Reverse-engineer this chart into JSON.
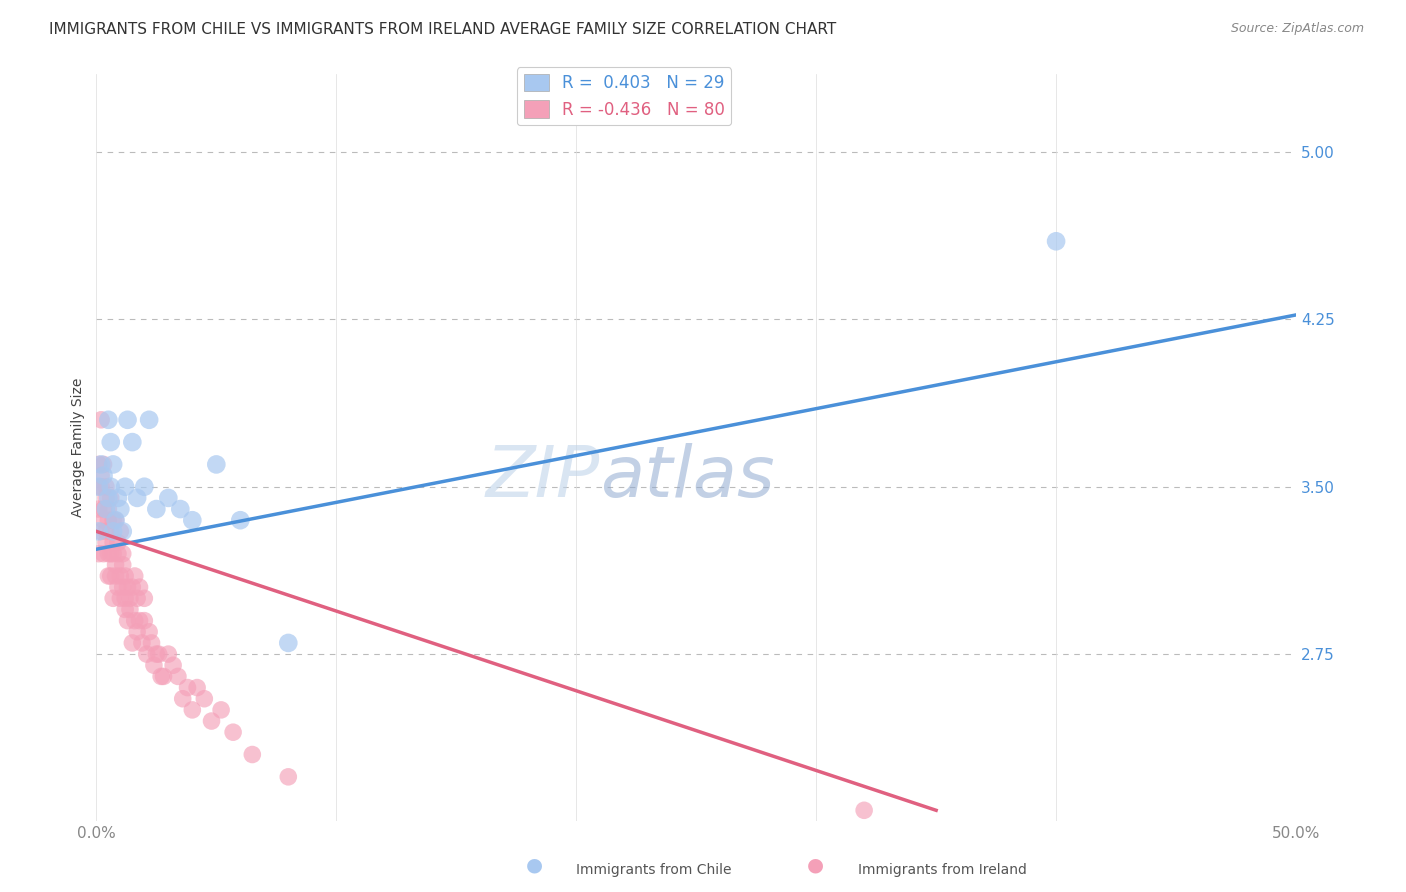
{
  "title": "IMMIGRANTS FROM CHILE VS IMMIGRANTS FROM IRELAND AVERAGE FAMILY SIZE CORRELATION CHART",
  "source": "Source: ZipAtlas.com",
  "ylabel": "Average Family Size",
  "watermark": "ZIPatlas",
  "chile_label": "Immigrants from Chile",
  "ireland_label": "Immigrants from Ireland",
  "chile_R": "0.403",
  "chile_N": "29",
  "ireland_R": "-0.436",
  "ireland_N": "80",
  "chile_color": "#a8c8f0",
  "ireland_color": "#f4a0b8",
  "chile_line_color": "#4a90d9",
  "ireland_line_color": "#e06080",
  "right_yticks": [
    5.0,
    4.25,
    3.5,
    2.75
  ],
  "ylim": [
    2.0,
    5.35
  ],
  "xlim": [
    0.0,
    0.5
  ],
  "background": "#ffffff",
  "grid_color": "#bbbbbb",
  "chile_line_x0": 0.0,
  "chile_line_y0": 3.22,
  "chile_line_x1": 0.5,
  "chile_line_y1": 4.27,
  "ireland_line_x0": 0.0,
  "ireland_line_y0": 3.3,
  "ireland_line_x1": 0.35,
  "ireland_line_y1": 2.05,
  "chile_x": [
    0.001,
    0.001,
    0.002,
    0.003,
    0.004,
    0.005,
    0.005,
    0.006,
    0.006,
    0.007,
    0.007,
    0.008,
    0.009,
    0.01,
    0.011,
    0.012,
    0.013,
    0.015,
    0.017,
    0.02,
    0.022,
    0.025,
    0.03,
    0.035,
    0.04,
    0.05,
    0.06,
    0.08,
    0.4
  ],
  "chile_y": [
    3.3,
    3.5,
    3.6,
    3.55,
    3.4,
    3.8,
    3.45,
    3.7,
    3.5,
    3.6,
    3.3,
    3.35,
    3.45,
    3.4,
    3.3,
    3.5,
    3.8,
    3.7,
    3.45,
    3.5,
    3.8,
    3.4,
    3.45,
    3.4,
    3.35,
    3.6,
    3.35,
    2.8,
    4.6
  ],
  "ireland_x": [
    0.001,
    0.001,
    0.001,
    0.001,
    0.002,
    0.002,
    0.002,
    0.002,
    0.003,
    0.003,
    0.003,
    0.003,
    0.004,
    0.004,
    0.004,
    0.004,
    0.005,
    0.005,
    0.005,
    0.005,
    0.006,
    0.006,
    0.006,
    0.006,
    0.007,
    0.007,
    0.007,
    0.007,
    0.008,
    0.008,
    0.008,
    0.009,
    0.009,
    0.009,
    0.01,
    0.01,
    0.01,
    0.011,
    0.011,
    0.011,
    0.012,
    0.012,
    0.012,
    0.013,
    0.013,
    0.014,
    0.014,
    0.015,
    0.015,
    0.016,
    0.016,
    0.017,
    0.017,
    0.018,
    0.018,
    0.019,
    0.02,
    0.02,
    0.021,
    0.022,
    0.023,
    0.024,
    0.025,
    0.026,
    0.027,
    0.028,
    0.03,
    0.032,
    0.034,
    0.036,
    0.038,
    0.04,
    0.042,
    0.045,
    0.048,
    0.052,
    0.057,
    0.065,
    0.08,
    0.32
  ],
  "ireland_y": [
    3.6,
    3.4,
    3.2,
    3.5,
    3.8,
    3.5,
    3.55,
    3.3,
    3.4,
    3.6,
    3.35,
    3.2,
    3.45,
    3.3,
    3.5,
    3.25,
    3.4,
    3.2,
    3.35,
    3.1,
    3.3,
    3.45,
    3.2,
    3.1,
    3.35,
    3.2,
    3.25,
    3.0,
    3.15,
    3.35,
    3.1,
    3.25,
    3.05,
    3.2,
    3.1,
    3.3,
    3.0,
    3.15,
    3.05,
    3.2,
    3.0,
    3.1,
    2.95,
    3.05,
    2.9,
    3.0,
    2.95,
    3.05,
    2.8,
    2.9,
    3.1,
    2.85,
    3.0,
    2.9,
    3.05,
    2.8,
    2.9,
    3.0,
    2.75,
    2.85,
    2.8,
    2.7,
    2.75,
    2.75,
    2.65,
    2.65,
    2.75,
    2.7,
    2.65,
    2.55,
    2.6,
    2.5,
    2.6,
    2.55,
    2.45,
    2.5,
    2.4,
    2.3,
    2.2,
    2.05
  ],
  "title_fontsize": 11,
  "label_fontsize": 10,
  "tick_fontsize": 11,
  "legend_fontsize": 12,
  "watermark_fontsize": 52,
  "source_fontsize": 9
}
